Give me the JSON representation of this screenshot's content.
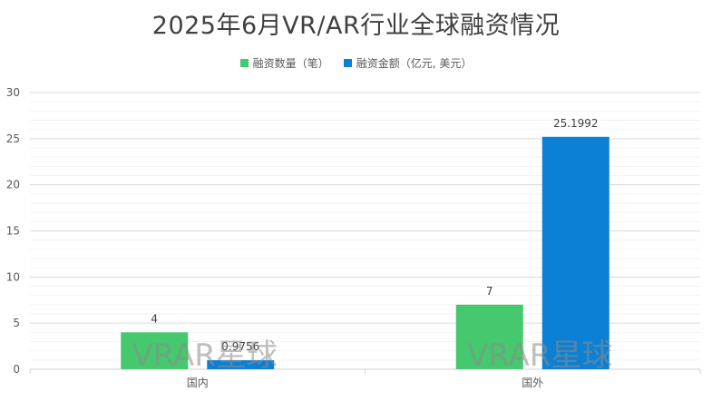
{
  "chart_data": {
    "type": "bar",
    "title": "2025年6月VR/AR行业全球融资情况",
    "categories": [
      "国内",
      "国外"
    ],
    "series": [
      {
        "name": "融资数量（笔）",
        "values": [
          4,
          7
        ],
        "labels": [
          "4",
          "7"
        ],
        "color": "#46c86e"
      },
      {
        "name": "融资金额（亿元, 美元）",
        "values": [
          0.9756,
          25.1992
        ],
        "labels": [
          "0.9756",
          "25.1992"
        ],
        "color": "#0b80d4"
      }
    ],
    "xlabel": "",
    "ylabel": "",
    "ylim": [
      0,
      30
    ],
    "yticks": [
      0,
      5,
      10,
      15,
      20,
      25,
      30
    ],
    "grid": true,
    "legend_position": "top-center",
    "watermark": "VRAR星球"
  }
}
